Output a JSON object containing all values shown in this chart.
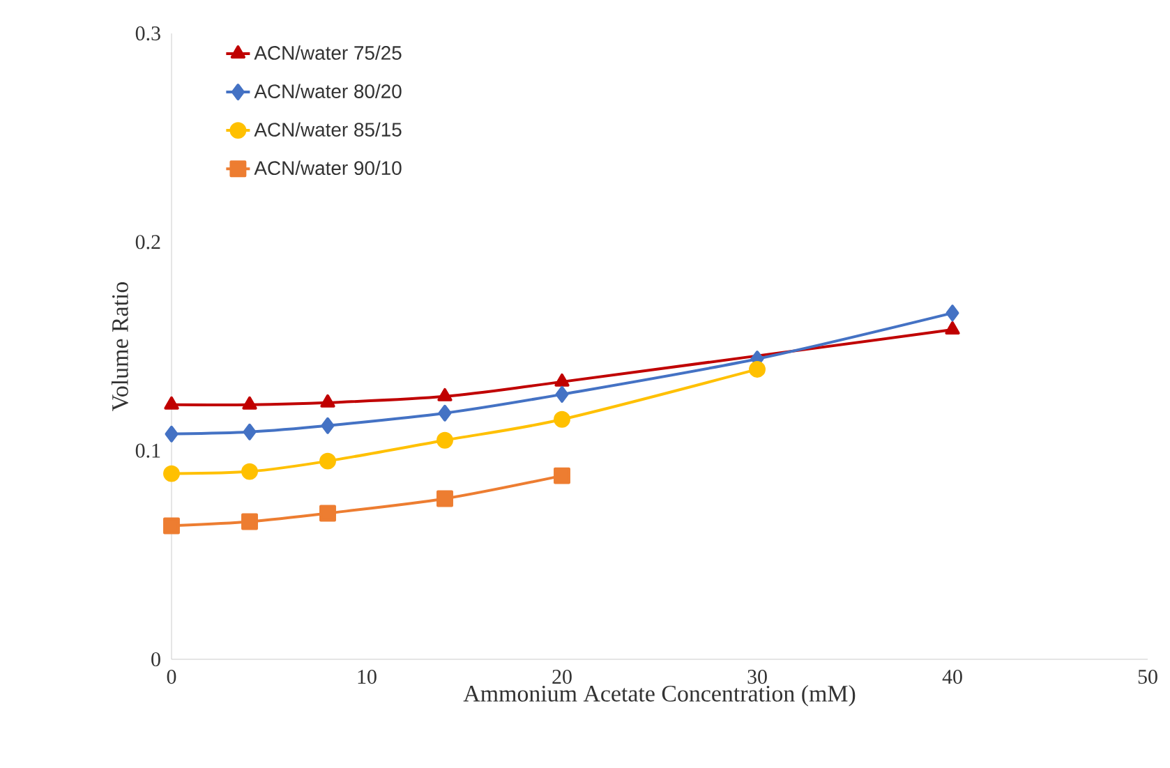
{
  "chart_data": {
    "type": "line",
    "xlabel": "Ammonium Acetate Concentration (mM)",
    "ylabel": "Volume Ratio",
    "xlim": [
      0,
      50
    ],
    "ylim": [
      0,
      0.3
    ],
    "xticks": [
      0,
      10,
      20,
      30,
      40,
      50
    ],
    "yticks": [
      0,
      0.1,
      0.2,
      0.3
    ],
    "legend": "top left",
    "series": [
      {
        "name": "ACN/water 75/25",
        "color": "#c00000",
        "marker": "triangle",
        "x": [
          0,
          4,
          8,
          14,
          20,
          30,
          40
        ],
        "values": [
          0.122,
          0.122,
          0.123,
          0.126,
          0.133,
          null,
          0.158
        ]
      },
      {
        "name": "ACN/water 80/20",
        "color": "#4472c4",
        "marker": "diamond",
        "x": [
          0,
          4,
          8,
          14,
          20,
          30,
          40
        ],
        "values": [
          0.108,
          0.109,
          0.112,
          0.118,
          0.127,
          0.144,
          0.166
        ]
      },
      {
        "name": "ACN/water 85/15",
        "color": "#ffc000",
        "marker": "circle",
        "x": [
          0,
          4,
          8,
          14,
          20,
          30
        ],
        "values": [
          0.089,
          0.09,
          0.095,
          0.105,
          0.115,
          0.139
        ]
      },
      {
        "name": "ACN/water 90/10",
        "color": "#ed7d31",
        "marker": "square",
        "x": [
          0,
          4,
          8,
          14,
          20
        ],
        "values": [
          0.064,
          0.066,
          0.07,
          0.077,
          0.088
        ]
      }
    ]
  }
}
